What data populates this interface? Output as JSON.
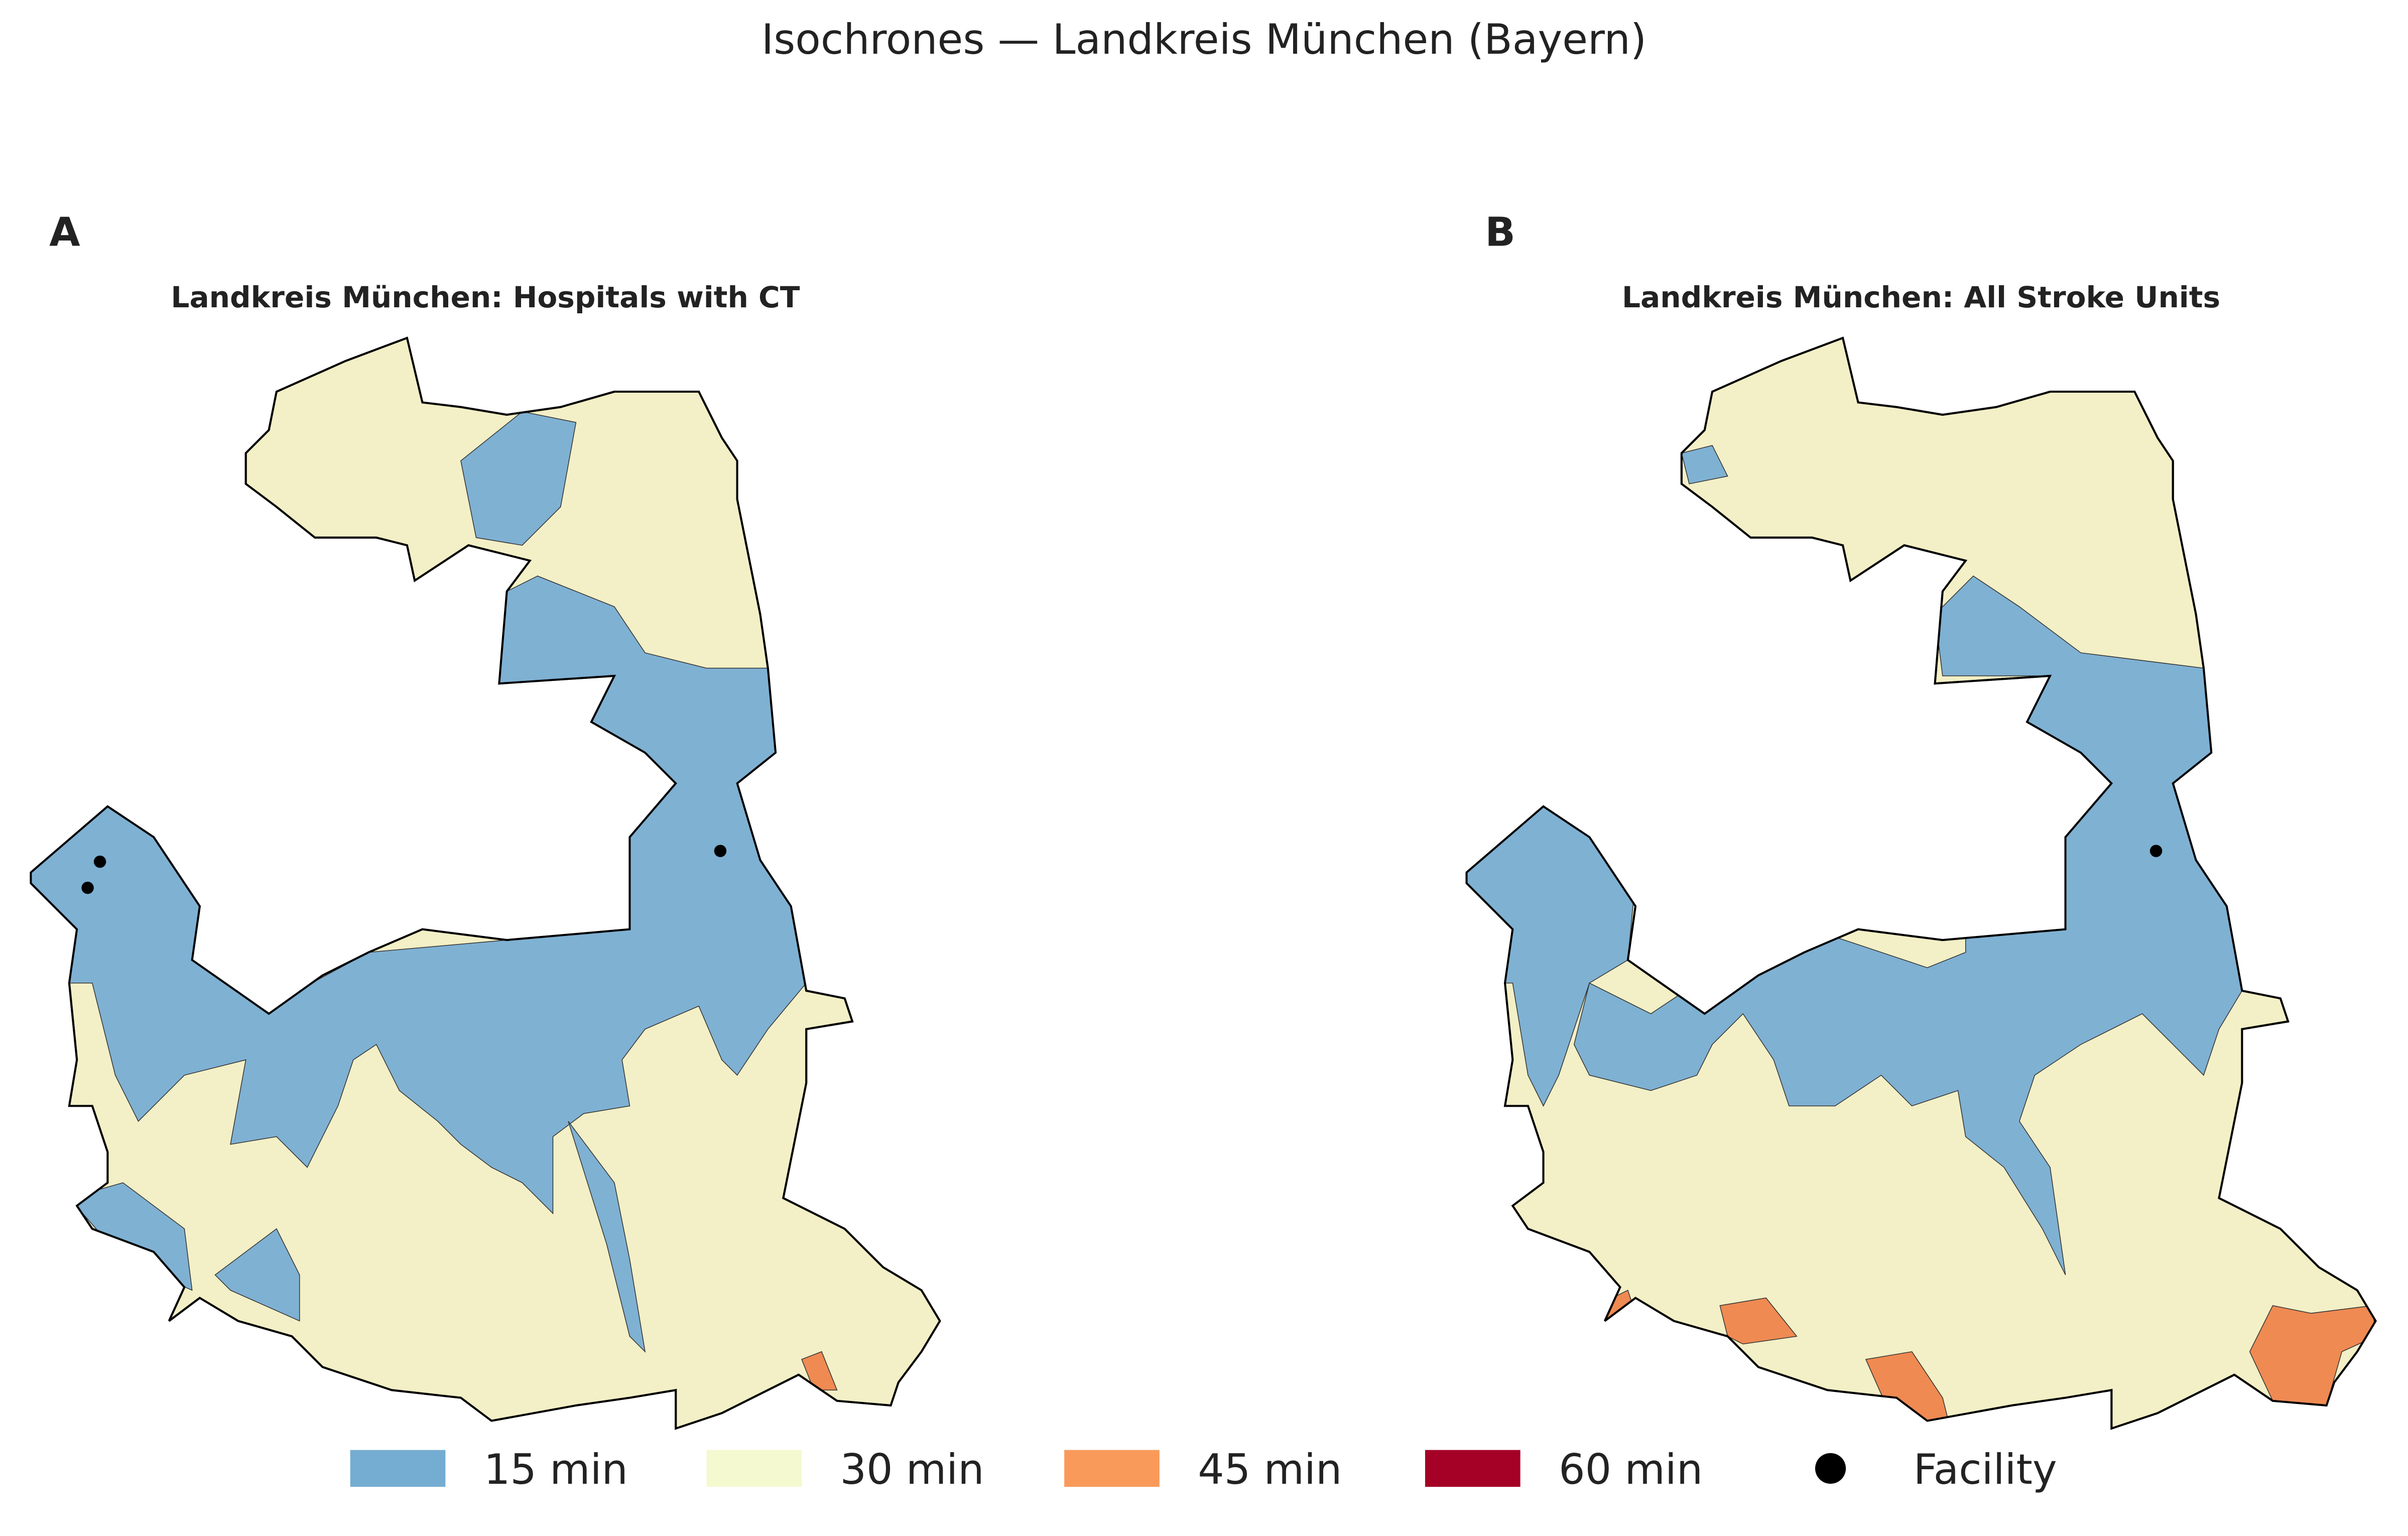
{
  "title": "Isochrones — Landkreis München (Bayern)",
  "panels": [
    {
      "letter": "A",
      "title": "Landkreis München: Hospitals with CT"
    },
    {
      "letter": "B",
      "title": "Landkreis München: All Stroke Units"
    }
  ],
  "legend": [
    {
      "label": "15 min",
      "color": "#74add1"
    },
    {
      "label": "30 min",
      "color": "#f4f9d0"
    },
    {
      "label": "45 min",
      "color": "#f99a5a"
    },
    {
      "label": "60 min",
      "color": "#a50026"
    },
    {
      "label": "Facility",
      "color": "#000000"
    }
  ]
}
